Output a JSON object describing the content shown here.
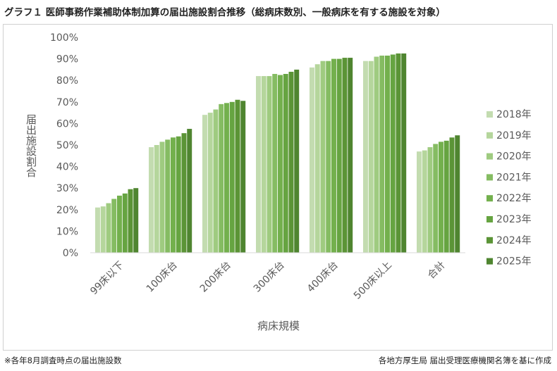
{
  "title": "グラフ１ 医師事務作業補助体制加算の届出施設割合推移（総病床数別、一般病床を有する施設を対象）",
  "note_left": "※各年8月調査時点の届出施設数",
  "note_right": "各地方厚生局 届出受理医療機関名簿を基に作成",
  "colors": [
    "#c3dcb0",
    "#b5d69c",
    "#9fcb80",
    "#85bc62",
    "#73b04d",
    "#66a441",
    "#5b9436",
    "#4f8530"
  ],
  "chart_data": {
    "type": "bar",
    "title": "",
    "xlabel": "病床規模",
    "ylabel": "届出施設割合",
    "ylim": [
      0,
      100
    ],
    "yticks": [
      "0%",
      "10%",
      "20%",
      "30%",
      "40%",
      "50%",
      "60%",
      "70%",
      "80%",
      "90%",
      "100%"
    ],
    "grid": false,
    "legend_position": "right",
    "categories": [
      "99床以下",
      "100床台",
      "200床台",
      "300床台",
      "400床台",
      "500床以上",
      "合計"
    ],
    "series": [
      {
        "name": "2018年",
        "values": [
          21,
          49,
          64,
          82,
          86,
          89,
          47
        ]
      },
      {
        "name": "2019年",
        "values": [
          21.5,
          50,
          65,
          82,
          87.5,
          89,
          47.5
        ]
      },
      {
        "name": "2020年",
        "values": [
          23,
          51.5,
          66.5,
          82,
          89,
          91,
          49
        ]
      },
      {
        "name": "2021年",
        "values": [
          25,
          52.5,
          69,
          83,
          89,
          91.5,
          50.5
        ]
      },
      {
        "name": "2022年",
        "values": [
          26.5,
          53.5,
          69.5,
          82.5,
          90,
          91.5,
          51.5
        ]
      },
      {
        "name": "2023年",
        "values": [
          27.5,
          54,
          70,
          83,
          90,
          92,
          52
        ]
      },
      {
        "name": "2024年",
        "values": [
          29.5,
          55.5,
          71,
          84,
          90.5,
          92.5,
          53.5
        ]
      },
      {
        "name": "2025年",
        "values": [
          30,
          57.5,
          70.5,
          85,
          90.5,
          92.5,
          54.5
        ]
      }
    ]
  }
}
